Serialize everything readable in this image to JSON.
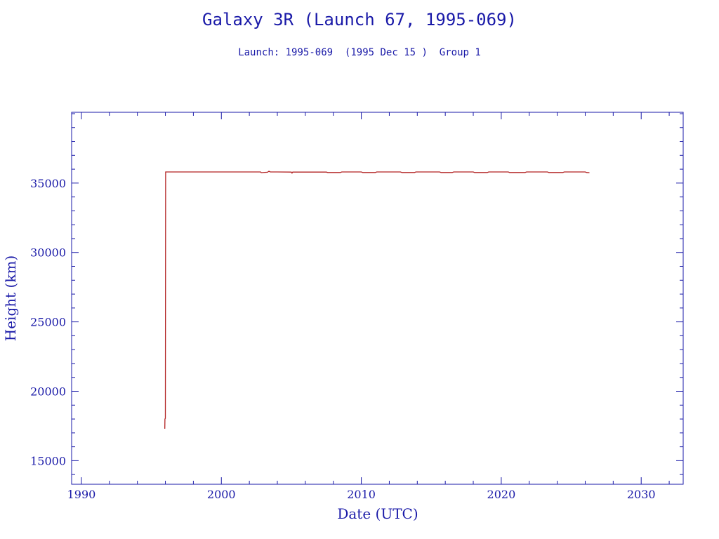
{
  "chart_data": {
    "type": "line",
    "title": "Galaxy 3R (Launch 67, 1995-069)",
    "subtitle": "Launch: 1995-069  (1995 Dec 15 )  Group 1",
    "xlabel": "Date (UTC)",
    "ylabel": "Height (km)",
    "xlim": [
      1989.3,
      2033.0
    ],
    "ylim": [
      13300,
      40100
    ],
    "x_ticks": [
      1990,
      2000,
      2010,
      2020,
      2030
    ],
    "x_tick_labels": [
      "1990",
      "2000",
      "2010",
      "2020",
      "2030"
    ],
    "y_ticks": [
      15000,
      20000,
      25000,
      30000,
      35000
    ],
    "y_tick_labels": [
      "15000",
      "20000",
      "25000",
      "30000",
      "35000"
    ],
    "x_minor_step": 2,
    "y_minor_step": 1000,
    "grid": false,
    "colors": {
      "axis": "#1a1aa8",
      "series": "#b22222"
    },
    "series": [
      {
        "values": [
          [
            1995.96,
            17300
          ],
          [
            1995.97,
            18000
          ],
          [
            1996.0,
            18050
          ],
          [
            1996.02,
            35800
          ],
          [
            1998.0,
            35800
          ],
          [
            2000.0,
            35800
          ],
          [
            2002.0,
            35800
          ],
          [
            2002.8,
            35800
          ],
          [
            2002.85,
            35750
          ],
          [
            2003.3,
            35780
          ],
          [
            2003.4,
            35850
          ],
          [
            2003.5,
            35800
          ],
          [
            2004.0,
            35800
          ],
          [
            2005.0,
            35790
          ],
          [
            2005.05,
            35720
          ],
          [
            2005.1,
            35790
          ],
          [
            2006.0,
            35790
          ],
          [
            2007.5,
            35790
          ],
          [
            2007.6,
            35760
          ],
          [
            2008.5,
            35760
          ],
          [
            2008.6,
            35800
          ],
          [
            2010.0,
            35800
          ],
          [
            2010.1,
            35760
          ],
          [
            2011.0,
            35760
          ],
          [
            2011.1,
            35800
          ],
          [
            2012.8,
            35800
          ],
          [
            2012.9,
            35760
          ],
          [
            2013.8,
            35760
          ],
          [
            2013.9,
            35800
          ],
          [
            2015.6,
            35800
          ],
          [
            2015.7,
            35760
          ],
          [
            2016.5,
            35760
          ],
          [
            2016.6,
            35800
          ],
          [
            2018.0,
            35800
          ],
          [
            2018.1,
            35760
          ],
          [
            2019.0,
            35760
          ],
          [
            2019.1,
            35800
          ],
          [
            2020.5,
            35800
          ],
          [
            2020.6,
            35760
          ],
          [
            2021.7,
            35760
          ],
          [
            2021.8,
            35800
          ],
          [
            2023.3,
            35800
          ],
          [
            2023.4,
            35760
          ],
          [
            2024.4,
            35760
          ],
          [
            2024.5,
            35800
          ],
          [
            2026.0,
            35800
          ],
          [
            2026.1,
            35760
          ],
          [
            2026.3,
            35750
          ]
        ]
      }
    ]
  }
}
